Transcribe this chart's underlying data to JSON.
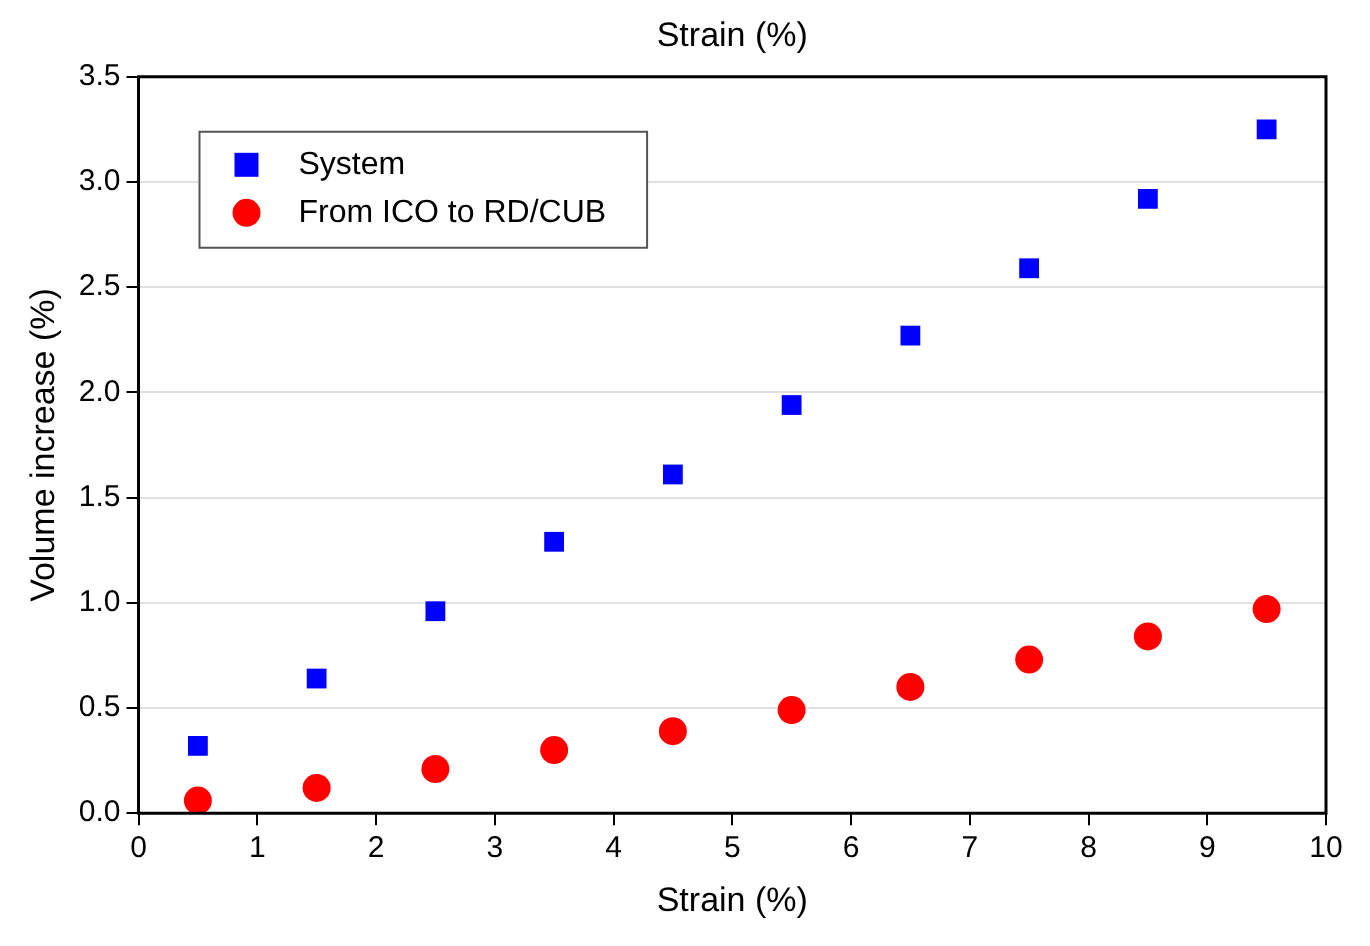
{
  "chart_data": {
    "type": "scatter",
    "xlabel": "Strain (%)",
    "x2label": "Strain (%)",
    "ylabel": "Volume increase (%)",
    "x": [
      0.5,
      1.5,
      2.5,
      3.5,
      4.5,
      5.5,
      6.5,
      7.5,
      8.5,
      9.5
    ],
    "series": [
      {
        "name": "System",
        "color": "#0000ff",
        "marker": "square",
        "values": [
          0.32,
          0.64,
          0.96,
          1.29,
          1.61,
          1.94,
          2.27,
          2.59,
          2.92,
          3.25
        ]
      },
      {
        "name": "From ICO to RD/CUB",
        "color": "#ff0000",
        "marker": "circle",
        "values": [
          0.06,
          0.12,
          0.21,
          0.3,
          0.39,
          0.49,
          0.6,
          0.73,
          0.84,
          0.97
        ]
      }
    ],
    "xlim": [
      0,
      10
    ],
    "xticks": [
      0,
      1,
      2,
      3,
      4,
      5,
      6,
      7,
      8,
      9,
      10
    ],
    "ylim": [
      0,
      3.5
    ],
    "yticks": [
      {
        "value": 0,
        "label": "0.0"
      },
      {
        "value": 0.5,
        "label": "0.5"
      },
      {
        "value": 1,
        "label": "1.0"
      },
      {
        "value": 1.5,
        "label": "1.5"
      },
      {
        "value": 2,
        "label": "2.0"
      },
      {
        "value": 2.5,
        "label": "2.5"
      },
      {
        "value": 3,
        "label": "3.0"
      },
      {
        "value": 3.5,
        "label": "3.5"
      }
    ],
    "grid": "y",
    "legend": "top left"
  }
}
